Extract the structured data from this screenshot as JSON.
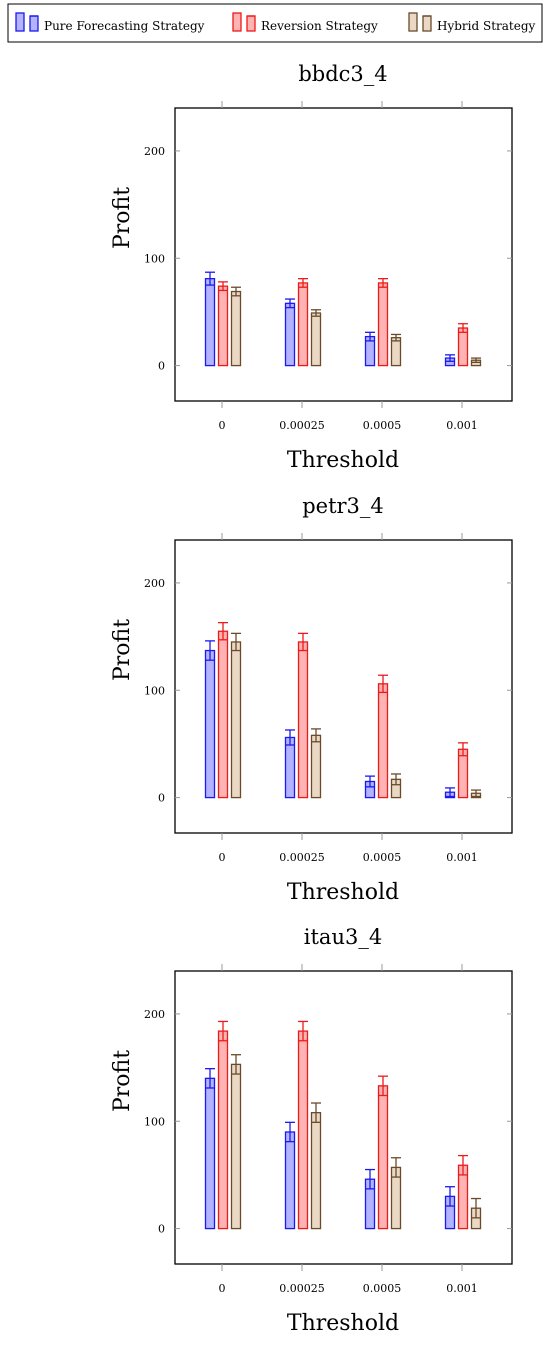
{
  "legend": {
    "items": [
      {
        "label": "Pure Forecasting Strategy",
        "stroke": "#1a1aee",
        "fill": "#b3b3ff"
      },
      {
        "label": "Reversion Strategy",
        "stroke": "#ee1a1a",
        "fill": "#ffb3b3"
      },
      {
        "label": "Hybrid Strategy",
        "stroke": "#6b4a2b",
        "fill": "#ead8c4"
      }
    ]
  },
  "chart_data": [
    {
      "type": "bar",
      "title": "bbdc3_4",
      "xlabel": "Threshold",
      "ylabel": "Profit",
      "categories": [
        "0",
        "0.00025",
        "0.0005",
        "0.001"
      ],
      "ylim": [
        -33,
        240
      ],
      "yticks": [
        0,
        100,
        200
      ],
      "grid": false,
      "legend_position": "top",
      "series": [
        {
          "name": "Pure Forecasting Strategy",
          "values": [
            81,
            58,
            27,
            7
          ],
          "errors": [
            6,
            4,
            4,
            3
          ]
        },
        {
          "name": "Reversion Strategy",
          "values": [
            74,
            77,
            77,
            35
          ],
          "errors": [
            4,
            4,
            4,
            4
          ]
        },
        {
          "name": "Hybrid Strategy",
          "values": [
            69,
            49,
            26,
            5
          ],
          "errors": [
            4,
            3,
            3,
            2
          ]
        }
      ]
    },
    {
      "type": "bar",
      "title": "petr3_4",
      "xlabel": "Threshold",
      "ylabel": "Profit",
      "categories": [
        "0",
        "0.00025",
        "0.0005",
        "0.001"
      ],
      "ylim": [
        -33,
        240
      ],
      "yticks": [
        0,
        100,
        200
      ],
      "grid": false,
      "series": [
        {
          "name": "Pure Forecasting Strategy",
          "values": [
            137,
            56,
            15,
            5
          ],
          "errors": [
            9,
            7,
            5,
            4
          ]
        },
        {
          "name": "Reversion Strategy",
          "values": [
            155,
            145,
            106,
            45
          ],
          "errors": [
            8,
            8,
            8,
            6
          ]
        },
        {
          "name": "Hybrid Strategy",
          "values": [
            145,
            58,
            17,
            4
          ],
          "errors": [
            8,
            6,
            5,
            3
          ]
        }
      ]
    },
    {
      "type": "bar",
      "title": "itau3_4",
      "xlabel": "Threshold",
      "ylabel": "Profit",
      "categories": [
        "0",
        "0.00025",
        "0.0005",
        "0.001"
      ],
      "ylim": [
        -33,
        240
      ],
      "yticks": [
        0,
        100,
        200
      ],
      "grid": false,
      "series": [
        {
          "name": "Pure Forecasting Strategy",
          "values": [
            140,
            90,
            46,
            30
          ],
          "errors": [
            9,
            9,
            9,
            9
          ]
        },
        {
          "name": "Reversion Strategy",
          "values": [
            184,
            184,
            133,
            59
          ],
          "errors": [
            9,
            9,
            9,
            9
          ]
        },
        {
          "name": "Hybrid Strategy",
          "values": [
            153,
            108,
            57,
            19
          ],
          "errors": [
            9,
            9,
            9,
            9
          ]
        }
      ]
    }
  ]
}
